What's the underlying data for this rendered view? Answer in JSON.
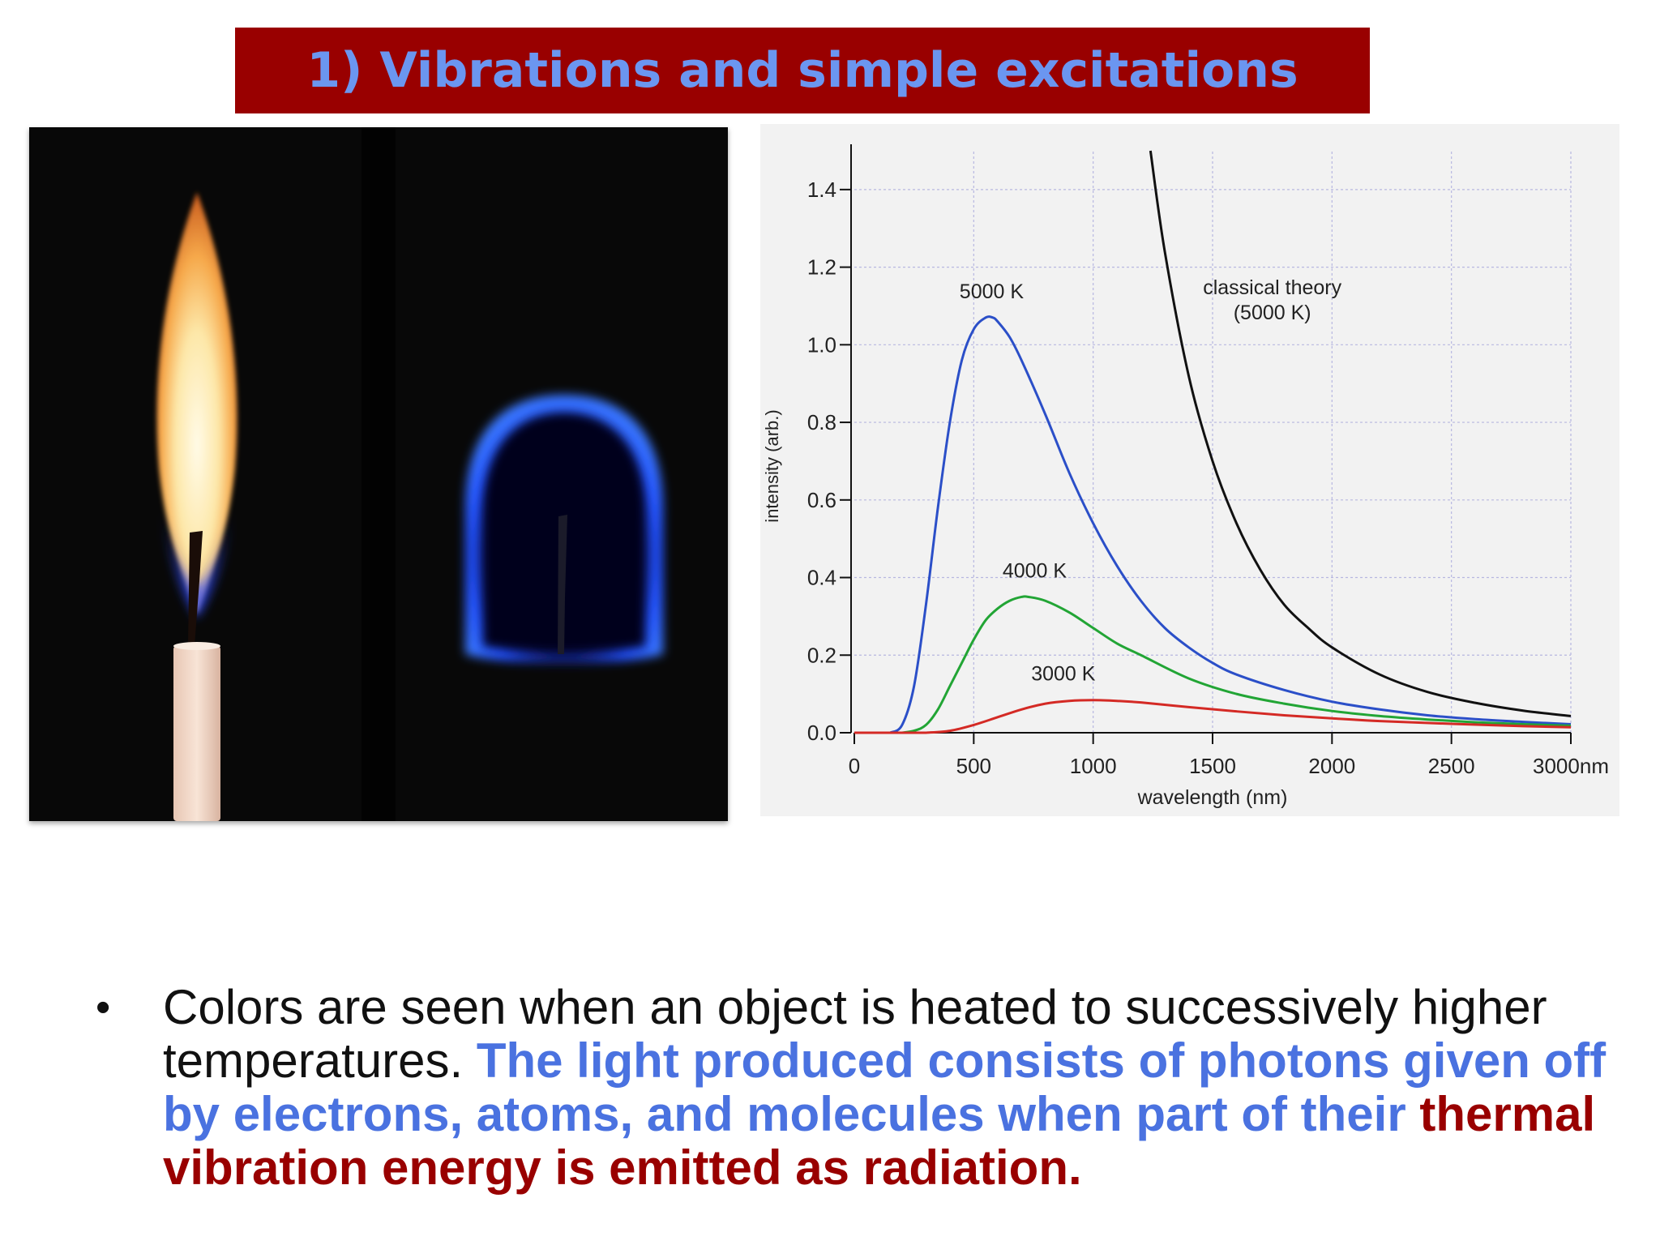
{
  "slide": {
    "title": "1) Vibrations and simple excitations"
  },
  "photo": {
    "panels": [
      "candle flame in normal gravity",
      "candle flame in microgravity"
    ]
  },
  "chart_data": {
    "type": "line",
    "title": "",
    "xlabel": "wavelength (nm)",
    "ylabel": "intensity (arb.)",
    "xlim": [
      0,
      3000
    ],
    "ylim": [
      0,
      1.5
    ],
    "x_ticks": [
      "0",
      "500",
      "1000",
      "1500",
      "2000",
      "2500",
      "3000nm"
    ],
    "y_ticks": [
      "0.0",
      "0.2",
      "0.4",
      "0.6",
      "0.8",
      "1.0",
      "1.2",
      "1.4"
    ],
    "grid": true,
    "series": [
      {
        "name": "5000 K",
        "color": "#2b4fc8",
        "x": [
          150,
          200,
          250,
          300,
          350,
          400,
          450,
          500,
          550,
          580,
          600,
          650,
          700,
          800,
          900,
          1000,
          1100,
          1200,
          1300,
          1400,
          1500,
          1600,
          1800,
          2000,
          2200,
          2400,
          2600,
          2800,
          3000
        ],
        "y": [
          0.0,
          0.02,
          0.12,
          0.33,
          0.58,
          0.8,
          0.96,
          1.04,
          1.07,
          1.07,
          1.06,
          1.02,
          0.96,
          0.82,
          0.67,
          0.54,
          0.43,
          0.34,
          0.27,
          0.22,
          0.18,
          0.15,
          0.11,
          0.08,
          0.06,
          0.045,
          0.035,
          0.028,
          0.022
        ]
      },
      {
        "name": "4000 K",
        "color": "#22a535",
        "x": [
          200,
          250,
          300,
          350,
          400,
          450,
          500,
          550,
          600,
          650,
          700,
          730,
          800,
          900,
          1000,
          1100,
          1200,
          1400,
          1600,
          1800,
          2000,
          2200,
          2400,
          2600,
          2800,
          3000
        ],
        "y": [
          0.0,
          0.005,
          0.02,
          0.06,
          0.12,
          0.18,
          0.24,
          0.29,
          0.32,
          0.34,
          0.35,
          0.35,
          0.34,
          0.31,
          0.27,
          0.23,
          0.2,
          0.14,
          0.1,
          0.075,
          0.056,
          0.043,
          0.034,
          0.027,
          0.022,
          0.018
        ]
      },
      {
        "name": "3000 K",
        "color": "#d42a25",
        "x": [
          300,
          400,
          500,
          600,
          700,
          800,
          900,
          1000,
          1100,
          1200,
          1400,
          1600,
          1800,
          2000,
          2200,
          2500,
          2800,
          3000
        ],
        "y": [
          0.0,
          0.005,
          0.02,
          0.04,
          0.06,
          0.075,
          0.082,
          0.084,
          0.082,
          0.078,
          0.066,
          0.055,
          0.045,
          0.037,
          0.03,
          0.023,
          0.017,
          0.014
        ]
      },
      {
        "name": "classical theory\n(5000 K)",
        "color": "#111111",
        "x": [
          1240,
          1300,
          1400,
          1500,
          1600,
          1700,
          1800,
          1900,
          2000,
          2200,
          2400,
          2600,
          2800,
          3000
        ],
        "y": [
          1.5,
          1.24,
          0.92,
          0.7,
          0.54,
          0.42,
          0.33,
          0.27,
          0.22,
          0.15,
          0.105,
          0.077,
          0.057,
          0.043
        ]
      }
    ],
    "annotations": [
      {
        "text": "5000 K",
        "x": 575,
        "y": 1.12
      },
      {
        "text": "4000 K",
        "x": 755,
        "y": 0.4
      },
      {
        "text": "3000 K",
        "x": 875,
        "y": 0.135
      },
      {
        "text": "classical theory",
        "x": 1750,
        "y": 1.13
      },
      {
        "text": "(5000 K)",
        "x": 1750,
        "y": 1.065
      }
    ]
  },
  "bullet": {
    "part1": "Colors are seen when an object is heated to successively higher temperatures. ",
    "part2": "The light produced consists of photons given off by electrons, atoms, and molecules when part of their ",
    "part3": "thermal vibration energy is emitted as radiation",
    "part4": "."
  }
}
